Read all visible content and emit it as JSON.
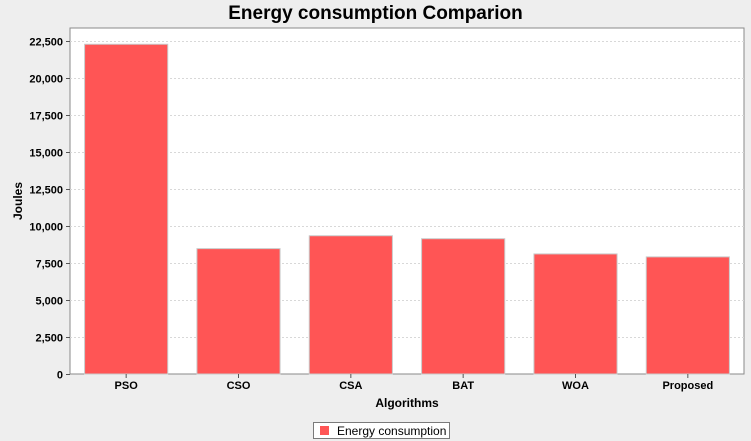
{
  "chart_data": {
    "type": "bar",
    "title": "Energy consumption Comparion",
    "xlabel": "Algorithms",
    "ylabel": "Joules",
    "categories": [
      "PSO",
      "CSO",
      "CSA",
      "BAT",
      "WOA",
      "Proposed"
    ],
    "series": [
      {
        "name": "Energy consumption",
        "values": [
          22300,
          8480,
          9350,
          9150,
          8120,
          7920
        ],
        "color": "#ff5555"
      }
    ],
    "ylim": [
      0,
      23400
    ],
    "yticks": [
      0,
      2500,
      5000,
      7500,
      10000,
      12500,
      15000,
      17500,
      20000,
      22500
    ],
    "ytick_labels": [
      "0",
      "2,500",
      "5,000",
      "7,500",
      "10,000",
      "12,500",
      "15,000",
      "17,500",
      "20,000",
      "22,500"
    ],
    "grid": true,
    "legend_position": "bottom-center",
    "plot_background": "#ffffff",
    "gridline_color": "#d8d8d8"
  }
}
